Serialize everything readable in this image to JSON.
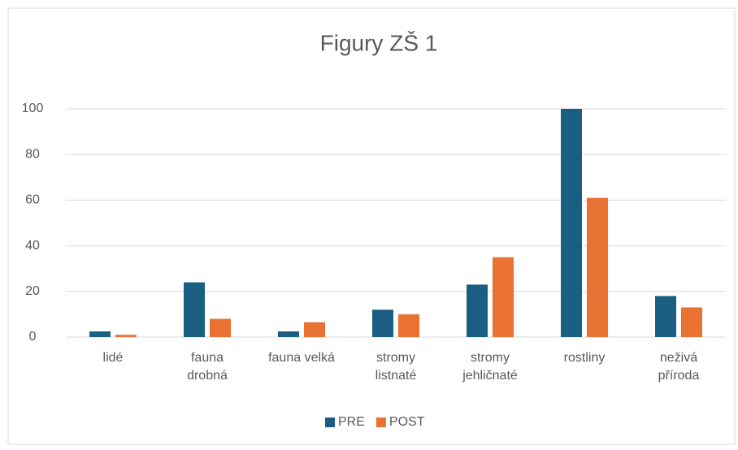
{
  "chart_data": {
    "type": "bar",
    "title": "Figury ZŠ 1",
    "categories": [
      "lidé",
      "fauna\ndrobná",
      "fauna velká",
      "stromy\nlistnaté",
      "stromy\njehličnaté",
      "rostliny",
      "neživá\npříroda"
    ],
    "series": [
      {
        "name": "PRE",
        "color": "#1a5e82",
        "values": [
          2.5,
          24,
          2.5,
          12,
          23,
          100,
          18
        ]
      },
      {
        "name": "POST",
        "color": "#e97132",
        "values": [
          1,
          8,
          6.5,
          10,
          35,
          61,
          13
        ]
      }
    ],
    "ylim": [
      0,
      100
    ],
    "yticks": [
      0,
      20,
      40,
      60,
      80,
      100
    ],
    "grid": true,
    "legend": "bottom"
  }
}
